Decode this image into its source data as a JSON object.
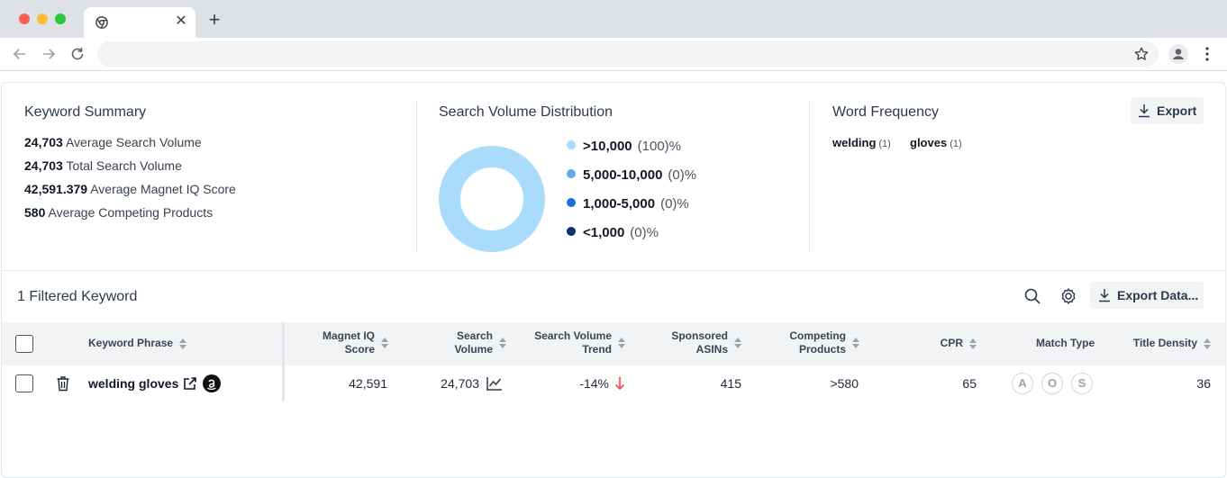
{
  "browser": {
    "tab_close": "✕",
    "new_tab": "+"
  },
  "summary": {
    "title": "Keyword Summary",
    "stats": [
      {
        "value": "24,703",
        "label": "Average Search Volume"
      },
      {
        "value": "24,703",
        "label": "Total Search Volume"
      },
      {
        "value": "42,591.379",
        "label": "Average Magnet IQ Score"
      },
      {
        "value": "580",
        "label": "Average Competing Products"
      }
    ]
  },
  "distribution": {
    "title": "Search Volume Distribution",
    "legend": [
      {
        "label": ">10,000",
        "pct": "(100)%",
        "color": "#a8dcfa",
        "share": 100
      },
      {
        "label": "5,000-10,000",
        "pct": "(0)%",
        "color": "#5aaef0",
        "share": 0
      },
      {
        "label": "1,000-5,000",
        "pct": "(0)%",
        "color": "#1d6fe0",
        "share": 0
      },
      {
        "label": "<1,000",
        "pct": "(0)%",
        "color": "#0d2f6b",
        "share": 0
      }
    ]
  },
  "word_frequency": {
    "title": "Word Frequency",
    "export_label": "Export",
    "words": [
      {
        "word": "welding",
        "count": "(1)"
      },
      {
        "word": "gloves",
        "count": "(1)"
      }
    ]
  },
  "table_section": {
    "title": "1 Filtered Keyword",
    "export_label": "Export Data..."
  },
  "table": {
    "headers": {
      "keyword": "Keyword Phrase",
      "magnet_l1": "Magnet IQ",
      "magnet_l2": "Score",
      "search_l1": "Search",
      "search_l2": "Volume",
      "trend_l1": "Search Volume",
      "trend_l2": "Trend",
      "sponsored_l1": "Sponsored",
      "sponsored_l2": "ASINs",
      "competing_l1": "Competing",
      "competing_l2": "Products",
      "cpr": "CPR",
      "match": "Match Type",
      "title_density": "Title Density"
    },
    "rows": [
      {
        "keyword": "welding gloves",
        "magnet": "42,591",
        "search_volume": "24,703",
        "trend": "-14%",
        "sponsored": "415",
        "competing": ">580",
        "cpr": "65",
        "match_types": [
          "A",
          "O",
          "S"
        ],
        "title_density": "36"
      }
    ]
  },
  "colors": {
    "accent": "#2d3a4d",
    "trend_down": "#e5484d",
    "header_bg": "#f1f3f5"
  }
}
